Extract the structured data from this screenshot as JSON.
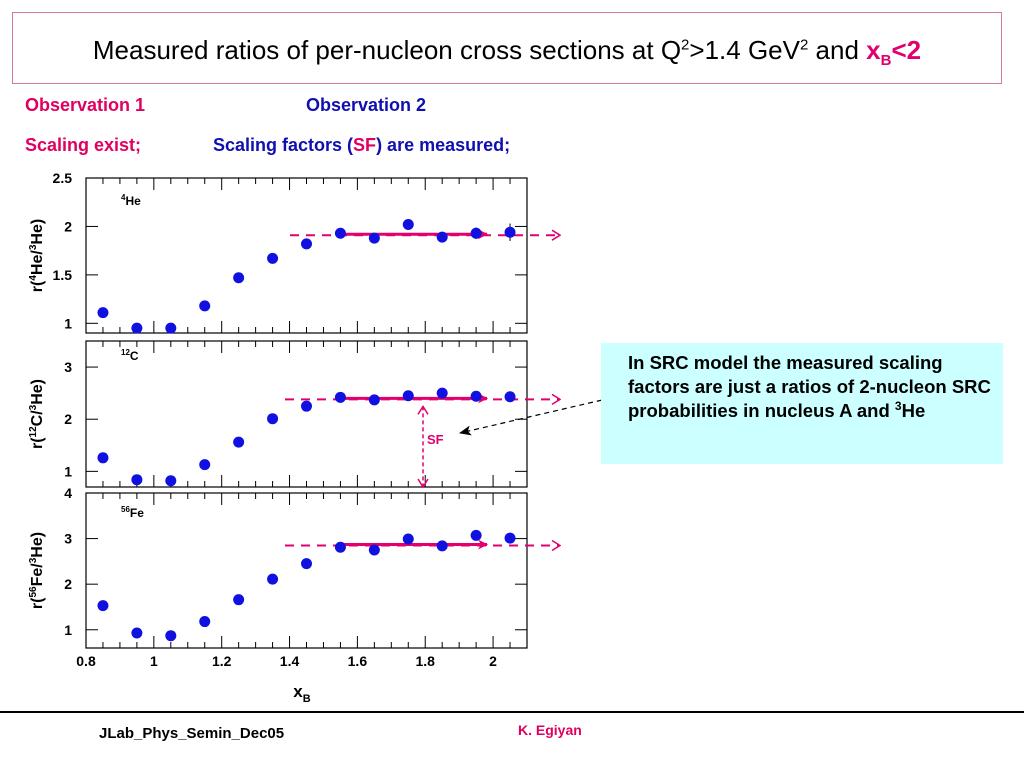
{
  "title": {
    "main": "Measured ratios of per-nucleon cross sections at Q",
    "q_sup": "2",
    "mid": ">1.4 GeV",
    "gev_sup": "2",
    "and": " and ",
    "xb": "x",
    "xb_sub": "B",
    "xb_cond": "<2"
  },
  "observations": {
    "obs1_label": "Observation 1",
    "obs2_label": "Observation 2",
    "obs1_text": "Scaling exist;",
    "obs2_text_pre": "Scaling factors (",
    "obs2_sf": "SF",
    "obs2_text_post": ") are measured;"
  },
  "callout": {
    "text": "In SRC model the measured scaling factors are just a ratios of 2-nucleon SRC probabilities in nucleus A and ",
    "sup": "3",
    "tail": "He"
  },
  "footer": {
    "left": "JLab_Phys_Semin_Dec05",
    "right": "K. Egiyan"
  },
  "colors": {
    "marker": "#1010e0",
    "arrow": "#e00070",
    "title_border": "#d4789e",
    "callout_bg": "#ccffff"
  },
  "chart_data": {
    "type": "scatter",
    "xlabel": "x",
    "xlabel_sub": "B",
    "xlim": [
      0.8,
      2.1
    ],
    "x_ticks": [
      "0.8",
      "1",
      "1.2",
      "1.4",
      "1.6",
      "1.8",
      "2"
    ],
    "x_tick_values": [
      0.8,
      1.0,
      1.2,
      1.4,
      1.6,
      1.8,
      2.0
    ],
    "sf_label": "SF",
    "panels": [
      {
        "label_mass": "4",
        "label_element": "He",
        "ylabel": "r(4He/3He)",
        "ylabel_parts": [
          "r(",
          "4",
          "He/",
          "3",
          "He)"
        ],
        "ylim": [
          0.9,
          2.5
        ],
        "y_ticks": [
          "1",
          "1.5",
          "2",
          "2.5"
        ],
        "y_tick_values": [
          1,
          1.5,
          2,
          2.5
        ],
        "x": [
          0.85,
          0.95,
          1.05,
          1.15,
          1.25,
          1.35,
          1.45,
          1.55,
          1.65,
          1.75,
          1.85,
          1.95,
          2.05
        ],
        "y": [
          1.11,
          0.95,
          0.95,
          1.18,
          1.47,
          1.67,
          1.82,
          1.93,
          1.88,
          2.02,
          1.89,
          1.93,
          1.94
        ],
        "sf": 1.92,
        "err": [
          0,
          0,
          0,
          0,
          0,
          0,
          0,
          0,
          0,
          0,
          0,
          0.06,
          0.09
        ]
      },
      {
        "label_mass": "12",
        "label_element": "C",
        "ylabel": "r(12C/3He)",
        "ylabel_parts": [
          "r(",
          "12",
          "C/",
          "3",
          "He)"
        ],
        "ylim": [
          0.7,
          3.5
        ],
        "y_ticks": [
          "1",
          "2",
          "3"
        ],
        "y_tick_values": [
          1,
          2,
          3
        ],
        "x": [
          0.85,
          0.95,
          1.05,
          1.15,
          1.25,
          1.35,
          1.45,
          1.55,
          1.65,
          1.75,
          1.85,
          1.95,
          2.05
        ],
        "y": [
          1.26,
          0.84,
          0.82,
          1.13,
          1.56,
          2.01,
          2.25,
          2.42,
          2.37,
          2.45,
          2.5,
          2.44,
          2.43
        ],
        "sf": 2.4,
        "err": [
          0,
          0,
          0,
          0,
          0,
          0,
          0,
          0,
          0,
          0,
          0,
          0,
          0
        ]
      },
      {
        "label_mass": "56",
        "label_element": "Fe",
        "ylabel": "r(56Fe/3He)",
        "ylabel_parts": [
          "r(",
          "56",
          "Fe/",
          "3",
          "He)"
        ],
        "ylim": [
          0.6,
          4.0
        ],
        "y_ticks": [
          "1",
          "2",
          "3",
          "4"
        ],
        "y_tick_values": [
          1,
          2,
          3,
          4
        ],
        "x": [
          0.85,
          0.95,
          1.05,
          1.15,
          1.25,
          1.35,
          1.45,
          1.55,
          1.65,
          1.75,
          1.85,
          1.95,
          2.05
        ],
        "y": [
          1.53,
          0.93,
          0.87,
          1.18,
          1.66,
          2.11,
          2.45,
          2.81,
          2.75,
          2.99,
          2.84,
          3.07,
          3.01
        ],
        "sf": 2.87,
        "err": [
          0,
          0,
          0,
          0,
          0,
          0,
          0,
          0,
          0,
          0,
          0,
          0.08,
          0.08
        ]
      }
    ]
  }
}
